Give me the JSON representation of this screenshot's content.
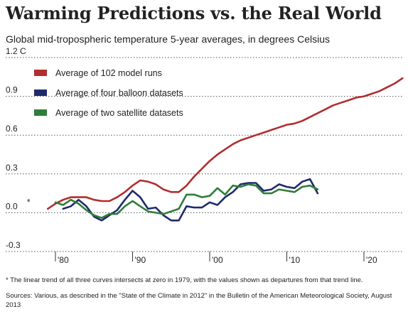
{
  "title": "Warming Predictions vs. the Real World",
  "subtitle": "Global mid-tropospheric temperature 5-year averages, in degrees Celsius",
  "footnote": "* The linear trend of all three curves intersects at zero in 1979, with the values shown as departures from that trend line.",
  "sources": "Sources: Various, as described in the \"State of the Climate in 2012\" in the Bulletin of the American Meteorological Society, August 2013",
  "colors": {
    "model": "#b22d2d",
    "balloon": "#1f2a6b",
    "satellite": "#2f7d3a",
    "grid": "#555555"
  },
  "chart_data": {
    "type": "line",
    "title": "Warming Predictions vs. the Real World",
    "subtitle": "Global mid-tropospheric temperature 5-year averages, in degrees Celsius",
    "xlabel": "",
    "ylabel": "",
    "xlim": [
      1975,
      2026
    ],
    "ylim": [
      -0.3,
      1.2
    ],
    "grid": "horizontal dotted",
    "legend_position": "top-left",
    "start_marker": "*",
    "yticks": [
      {
        "value": 1.2,
        "label": "1.2 C"
      },
      {
        "value": 0.9,
        "label": "0.9"
      },
      {
        "value": 0.6,
        "label": "0.6"
      },
      {
        "value": 0.3,
        "label": "0.3"
      },
      {
        "value": 0.0,
        "label": "0.0"
      },
      {
        "value": -0.3,
        "label": "-0.3"
      }
    ],
    "xticks": [
      {
        "value": 1980,
        "label": "'80"
      },
      {
        "value": 1990,
        "label": "'90"
      },
      {
        "value": 2000,
        "label": "'00"
      },
      {
        "value": 2010,
        "label": "'10"
      },
      {
        "value": 2020,
        "label": "'20"
      }
    ],
    "series": [
      {
        "name": "Average of 102 model runs",
        "color_key": "model",
        "x": [
          1979,
          1980,
          1981,
          1982,
          1983,
          1984,
          1985,
          1986,
          1987,
          1988,
          1989,
          1990,
          1991,
          1992,
          1993,
          1994,
          1995,
          1996,
          1997,
          1998,
          1999,
          2000,
          2001,
          2002,
          2003,
          2004,
          2005,
          2006,
          2007,
          2008,
          2009,
          2010,
          2011,
          2012,
          2013,
          2014,
          2015,
          2016,
          2017,
          2018,
          2019,
          2020,
          2021,
          2022,
          2023,
          2024,
          2025
        ],
        "values": [
          0.03,
          0.07,
          0.1,
          0.12,
          0.12,
          0.12,
          0.1,
          0.09,
          0.09,
          0.12,
          0.16,
          0.21,
          0.25,
          0.24,
          0.22,
          0.18,
          0.16,
          0.16,
          0.21,
          0.28,
          0.34,
          0.4,
          0.45,
          0.49,
          0.53,
          0.56,
          0.58,
          0.6,
          0.62,
          0.64,
          0.66,
          0.68,
          0.69,
          0.71,
          0.74,
          0.77,
          0.8,
          0.83,
          0.85,
          0.87,
          0.89,
          0.9,
          0.92,
          0.94,
          0.97,
          1.0,
          1.04
        ]
      },
      {
        "name": "Average of four balloon datasets",
        "color_key": "balloon",
        "x": [
          1981,
          1982,
          1983,
          1984,
          1985,
          1986,
          1987,
          1988,
          1989,
          1990,
          1991,
          1992,
          1993,
          1994,
          1995,
          1996,
          1997,
          1998,
          1999,
          2000,
          2001,
          2002,
          2003,
          2004,
          2005,
          2006,
          2007,
          2008,
          2009,
          2010,
          2011,
          2012,
          2013,
          2014
        ],
        "values": [
          0.03,
          0.05,
          0.1,
          0.05,
          -0.03,
          -0.06,
          -0.02,
          0.02,
          0.1,
          0.17,
          0.12,
          0.03,
          0.04,
          -0.02,
          -0.06,
          -0.06,
          0.05,
          0.04,
          0.04,
          0.08,
          0.06,
          0.12,
          0.16,
          0.22,
          0.23,
          0.23,
          0.17,
          0.18,
          0.22,
          0.2,
          0.19,
          0.24,
          0.26,
          0.15
        ]
      },
      {
        "name": "Average of two satellite datasets",
        "color_key": "satellite",
        "x": [
          1980,
          1981,
          1982,
          1983,
          1984,
          1985,
          1986,
          1987,
          1988,
          1989,
          1990,
          1991,
          1992,
          1993,
          1994,
          1995,
          1996,
          1997,
          1998,
          1999,
          2000,
          2001,
          2002,
          2003,
          2004,
          2005,
          2006,
          2007,
          2008,
          2009,
          2010,
          2011,
          2012,
          2013,
          2014
        ],
        "values": [
          0.08,
          0.06,
          0.1,
          0.07,
          0.02,
          -0.02,
          -0.04,
          -0.01,
          -0.01,
          0.05,
          0.09,
          0.05,
          0.01,
          0.0,
          -0.01,
          0.01,
          0.03,
          0.14,
          0.14,
          0.12,
          0.13,
          0.19,
          0.14,
          0.21,
          0.2,
          0.22,
          0.21,
          0.15,
          0.15,
          0.18,
          0.17,
          0.16,
          0.2,
          0.21,
          0.18
        ]
      }
    ]
  }
}
